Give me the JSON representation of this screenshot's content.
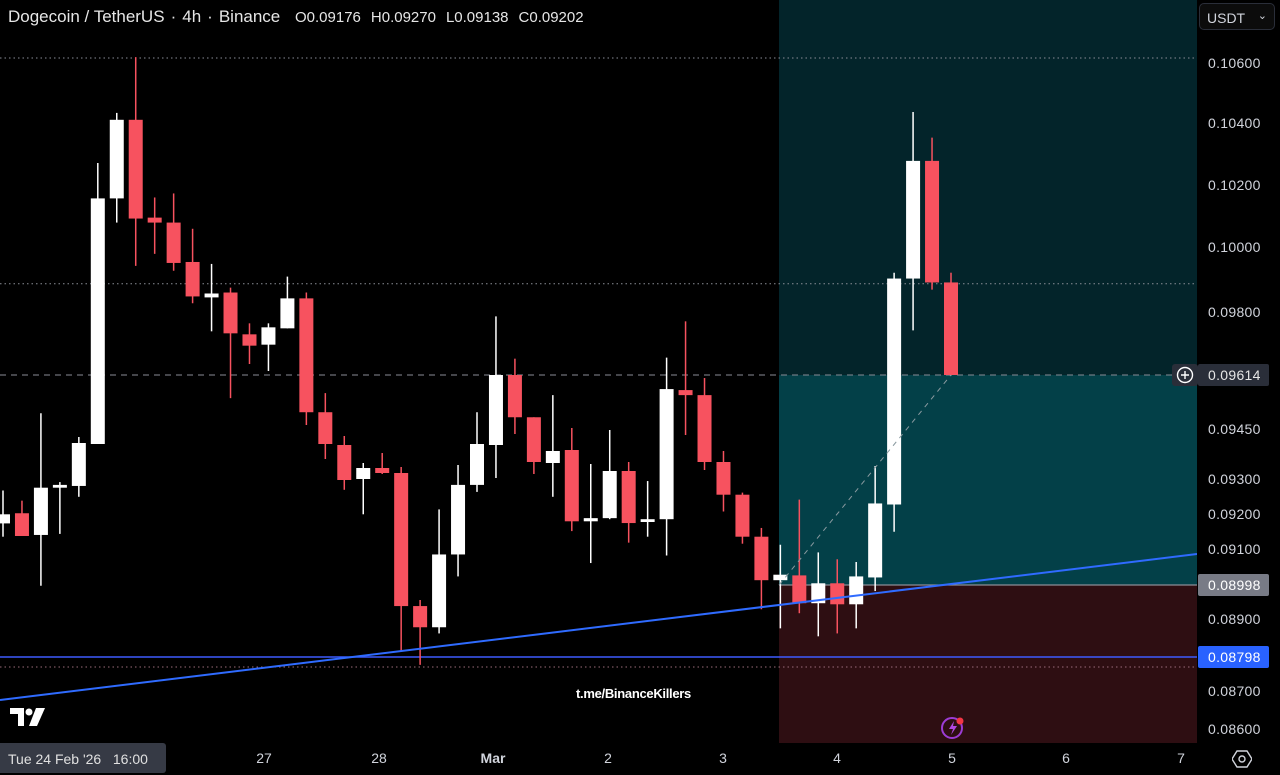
{
  "header": {
    "symbol": "Dogecoin / TetherUS",
    "interval": "4h",
    "exchange": "Binance",
    "separator": "·",
    "ohlc": {
      "open": "O0.09176",
      "high": "H0.09270",
      "low": "L0.09138",
      "close": "C0.09202"
    }
  },
  "currency_selector": {
    "value": "USDT",
    "chevron_icon": "chevron-down-icon"
  },
  "price_axis": {
    "ticks": [
      "0.10600",
      "0.10400",
      "0.10200",
      "0.10000",
      "0.09800",
      "0.09450",
      "0.09300",
      "0.09200",
      "0.09100",
      "0.08900",
      "0.08700",
      "0.08600"
    ],
    "last_price": "0.09614",
    "entry_price": "0.08998",
    "line_price": "0.08798",
    "add_icon": "plus-circle-icon"
  },
  "time_axis": {
    "crosshair_label": "Tue 24 Feb '26   16:00",
    "labels": [
      "27",
      "28",
      "Mar",
      "2",
      "3",
      "4",
      "5",
      "6",
      "7"
    ],
    "settings_icon": "gear-icon"
  },
  "watermark": "t.me/BinanceKillers",
  "logo": "TV",
  "colors": {
    "up": "#ffffff",
    "down": "#f7525f",
    "background": "#000000",
    "profit_zone": "#034048",
    "profit_zone_upper": "#03242a",
    "loss_zone": "#2e0e12",
    "trendline": "#2f6bff",
    "horizontal_line": "#3d5afe",
    "last_price_box": "#2a2e39",
    "entry_box": "#787b86",
    "line_box": "#2962ff"
  },
  "chart_data": {
    "type": "candlestick",
    "scale": "log",
    "grid": false,
    "ylim": [
      0.0858,
      0.1078
    ],
    "ytick_values": [
      0.106,
      0.104,
      0.102,
      0.1,
      0.098,
      0.09614,
      0.0945,
      0.093,
      0.092,
      0.091,
      0.08998,
      0.089,
      0.08798,
      0.087,
      0.086
    ],
    "x_labels": [
      "27",
      "28",
      "Mar",
      "2",
      "3",
      "4",
      "5",
      "6",
      "7"
    ],
    "candles_ohlc": [
      [
        0.09176,
        0.0927,
        0.09138,
        0.09202
      ],
      [
        0.09205,
        0.09241,
        0.0914,
        0.0914
      ],
      [
        0.09143,
        0.095,
        0.08996,
        0.09278
      ],
      [
        0.09278,
        0.09294,
        0.09146,
        0.09286
      ],
      [
        0.09283,
        0.09429,
        0.09252,
        0.09411
      ],
      [
        0.09408,
        0.10274,
        0.09408,
        0.1016
      ],
      [
        0.1016,
        0.10437,
        0.10082,
        0.10414
      ],
      [
        0.10414,
        0.10623,
        0.09945,
        0.10095
      ],
      [
        0.10098,
        0.10163,
        0.09982,
        0.10082
      ],
      [
        0.10082,
        0.10176,
        0.0993,
        0.09954
      ],
      [
        0.09957,
        0.10062,
        0.0983,
        0.09851
      ],
      [
        0.09848,
        0.09951,
        0.09745,
        0.0986
      ],
      [
        0.09863,
        0.09878,
        0.09545,
        0.09739
      ],
      [
        0.09736,
        0.09769,
        0.09647,
        0.09702
      ],
      [
        0.09705,
        0.09769,
        0.09626,
        0.09757
      ],
      [
        0.09754,
        0.09912,
        0.09754,
        0.09845
      ],
      [
        0.09845,
        0.09863,
        0.09465,
        0.09503
      ],
      [
        0.09503,
        0.0956,
        0.09363,
        0.09408
      ],
      [
        0.09405,
        0.09432,
        0.09272,
        0.093
      ],
      [
        0.09303,
        0.09351,
        0.09202,
        0.09336
      ],
      [
        0.09336,
        0.09381,
        0.09318,
        0.09321
      ],
      [
        0.09321,
        0.09339,
        0.08813,
        0.08939
      ],
      [
        0.08939,
        0.08956,
        0.08776,
        0.0888
      ],
      [
        0.0888,
        0.09216,
        0.08863,
        0.09087
      ],
      [
        0.09087,
        0.09345,
        0.09023,
        0.09286
      ],
      [
        0.09286,
        0.09503,
        0.09266,
        0.09408
      ],
      [
        0.09405,
        0.0979,
        0.09306,
        0.09614
      ],
      [
        0.09614,
        0.09663,
        0.09438,
        0.09488
      ],
      [
        0.09488,
        0.09488,
        0.09318,
        0.09354
      ],
      [
        0.09351,
        0.09554,
        0.09252,
        0.09387
      ],
      [
        0.0939,
        0.09456,
        0.09154,
        0.09182
      ],
      [
        0.09182,
        0.09348,
        0.09062,
        0.09191
      ],
      [
        0.09191,
        0.0945,
        0.09188,
        0.09327
      ],
      [
        0.09327,
        0.09354,
        0.09121,
        0.09177
      ],
      [
        0.0918,
        0.09297,
        0.09138,
        0.09188
      ],
      [
        0.09188,
        0.09666,
        0.09084,
        0.09572
      ],
      [
        0.09569,
        0.09775,
        0.09435,
        0.09554
      ],
      [
        0.09554,
        0.09605,
        0.0933,
        0.09354
      ],
      [
        0.09354,
        0.09387,
        0.0921,
        0.09258
      ],
      [
        0.09258,
        0.09264,
        0.09118,
        0.09138
      ],
      [
        0.09138,
        0.09163,
        0.0893,
        0.09012
      ],
      [
        0.09012,
        0.09115,
        0.08877,
        0.09028
      ],
      [
        0.09026,
        0.09244,
        0.08919,
        0.08947
      ],
      [
        0.08947,
        0.09093,
        0.08855,
        0.09003
      ],
      [
        0.09003,
        0.09073,
        0.08863,
        0.08944
      ],
      [
        0.08944,
        0.09065,
        0.08877,
        0.09023
      ],
      [
        0.0902,
        0.09342,
        0.08981,
        0.09233
      ],
      [
        0.0923,
        0.09924,
        0.09152,
        0.09906
      ],
      [
        0.09906,
        0.1044,
        0.09748,
        0.10281
      ],
      [
        0.10281,
        0.10356,
        0.09872,
        0.09894
      ],
      [
        0.09894,
        0.09924,
        0.09614,
        0.09614
      ]
    ],
    "last_price": 0.09614,
    "horizontal_level": 0.08798,
    "long_position": {
      "entry": 0.08998,
      "dotted_levels": [
        0.1062,
        0.0989,
        0.0877
      ]
    }
  }
}
